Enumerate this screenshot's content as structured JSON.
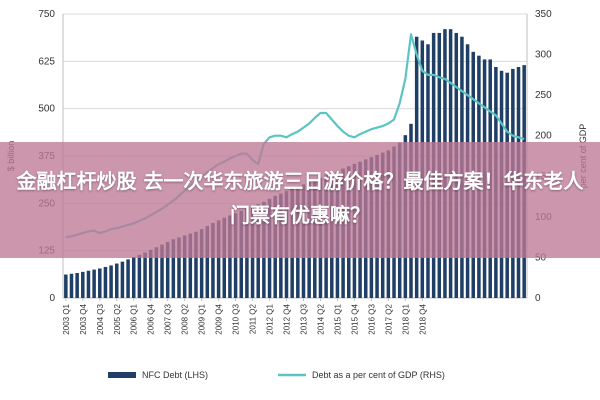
{
  "overlay": {
    "title": "金融杠杆炒股 去一次华东旅游三日游价格？最佳方案！华东老人门票有优惠嘛？"
  },
  "chart_data": {
    "type": "bar+line",
    "left_axis": {
      "label": "$ billion",
      "ticks": [
        0,
        125,
        250,
        375,
        500,
        625,
        750
      ],
      "ylim": [
        0,
        750
      ]
    },
    "right_axis": {
      "label": "per cent of GDP",
      "ticks": [
        0,
        50,
        100,
        150,
        200,
        250,
        300,
        350
      ],
      "ylim": [
        0,
        350
      ]
    },
    "x_tick_labels": [
      "2003 Q1",
      "2003 Q4",
      "2004 Q3",
      "2005 Q2",
      "2006 Q1",
      "2006 Q4",
      "2007 Q3",
      "2008 Q2",
      "2009 Q1",
      "2009 Q4",
      "2010 Q3",
      "2011 Q2",
      "2012 Q1",
      "2012 Q4",
      "2013 Q3",
      "2014 Q2",
      "2015 Q1",
      "2015 Q4",
      "2016 Q3",
      "2017 Q2",
      "2018 Q1",
      "2018 Q4"
    ],
    "series": [
      {
        "name": "NFC Debt (LHS)",
        "kind": "bar",
        "color": "#1f3f66",
        "values": [
          62,
          64,
          66,
          69,
          72,
          75,
          78,
          82,
          86,
          91,
          96,
          102,
          108,
          114,
          120,
          127,
          134,
          141,
          148,
          155,
          160,
          165,
          170,
          175,
          182,
          190,
          198,
          205,
          212,
          218,
          224,
          230,
          236,
          242,
          248,
          254,
          262,
          270,
          276,
          282,
          288,
          294,
          300,
          306,
          312,
          318,
          324,
          330,
          336,
          342,
          348,
          354,
          360,
          366,
          372,
          378,
          384,
          390,
          400,
          410,
          430,
          460,
          690,
          680,
          670,
          700,
          700,
          710,
          710,
          700,
          690,
          670,
          650,
          640,
          630,
          630,
          610,
          600,
          595,
          605,
          610,
          615
        ]
      },
      {
        "name": "Debt as a per cent of GDP (RHS)",
        "kind": "line",
        "color": "#5cc4c4",
        "values": [
          75,
          76,
          78,
          80,
          82,
          83,
          80,
          82,
          85,
          86,
          88,
          90,
          92,
          95,
          98,
          102,
          106,
          110,
          115,
          120,
          126,
          132,
          138,
          145,
          150,
          155,
          160,
          165,
          168,
          172,
          175,
          178,
          178,
          170,
          165,
          190,
          198,
          200,
          200,
          198,
          202,
          205,
          210,
          215,
          222,
          228,
          228,
          220,
          212,
          205,
          200,
          198,
          202,
          205,
          208,
          210,
          212,
          215,
          220,
          240,
          270,
          325,
          300,
          280,
          275,
          275,
          272,
          270,
          265,
          260,
          255,
          250,
          245,
          240,
          235,
          230,
          225,
          215,
          205,
          200,
          198,
          196
        ]
      }
    ],
    "legend": {
      "position": "bottom"
    }
  }
}
